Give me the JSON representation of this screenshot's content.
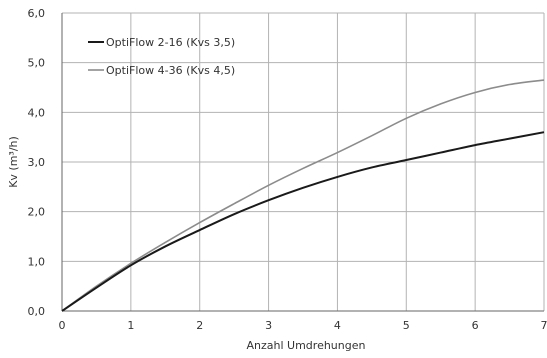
{
  "chart_data": {
    "type": "line",
    "title": "",
    "xlabel": "Anzahl Umdrehungen",
    "ylabel": "Kv (m³/h)",
    "xlim": [
      0,
      7
    ],
    "ylim": [
      0,
      6
    ],
    "x_ticks": [
      "0",
      "1",
      "2",
      "3",
      "4",
      "5",
      "6",
      "7"
    ],
    "y_ticks": [
      "0,0",
      "1,0",
      "2,0",
      "3,0",
      "4,0",
      "5,0",
      "6,0"
    ],
    "grid": true,
    "legend_position": "top-left",
    "series": [
      {
        "name": "OptiFlow 2-16 (Kvs 3,5)",
        "color": "#1a1a1a",
        "x": [
          0,
          0.5,
          1,
          1.5,
          2,
          2.5,
          3,
          3.5,
          4,
          4.5,
          5,
          5.5,
          6,
          6.5,
          7
        ],
        "y": [
          0,
          0.47,
          0.92,
          1.3,
          1.63,
          1.95,
          2.23,
          2.48,
          2.7,
          2.89,
          3.04,
          3.19,
          3.34,
          3.47,
          3.6
        ]
      },
      {
        "name": "OptiFlow 4-36 (Kvs 4,5)",
        "color": "#8c8c8c",
        "x": [
          0,
          0.5,
          1,
          1.5,
          2,
          2.5,
          3,
          3.5,
          4,
          4.5,
          5,
          5.5,
          6,
          6.5,
          7
        ],
        "y": [
          0,
          0.5,
          0.96,
          1.38,
          1.78,
          2.16,
          2.53,
          2.87,
          3.19,
          3.53,
          3.88,
          4.17,
          4.4,
          4.56,
          4.65
        ]
      }
    ]
  }
}
